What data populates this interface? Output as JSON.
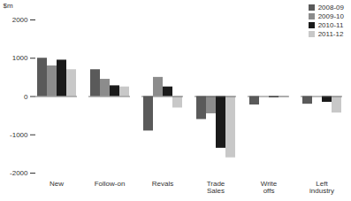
{
  "chart_data": {
    "type": "bar",
    "y_label": "$m",
    "categories": [
      "New",
      "Follow-on",
      "Revals",
      "Trade Sales",
      "Write offs",
      "Left industry"
    ],
    "series": [
      {
        "name": "2008-09",
        "color": "#5a5a5a",
        "values": [
          1000,
          700,
          -900,
          -600,
          -220,
          -200
        ]
      },
      {
        "name": "2009-10",
        "color": "#8c8c8c",
        "values": [
          800,
          450,
          500,
          -450,
          0,
          0
        ]
      },
      {
        "name": "2010-11",
        "color": "#1a1a1a",
        "values": [
          950,
          280,
          250,
          -1350,
          -30,
          -150
        ]
      },
      {
        "name": "2011-12",
        "color": "#c8c8c8",
        "values": [
          700,
          250,
          -300,
          -1600,
          -20,
          -430
        ]
      }
    ],
    "ylim": [
      -2000,
      2000
    ],
    "yticks": [
      -2000,
      -1000,
      0,
      1000,
      2000
    ],
    "grid": false,
    "legend": "top-right"
  }
}
